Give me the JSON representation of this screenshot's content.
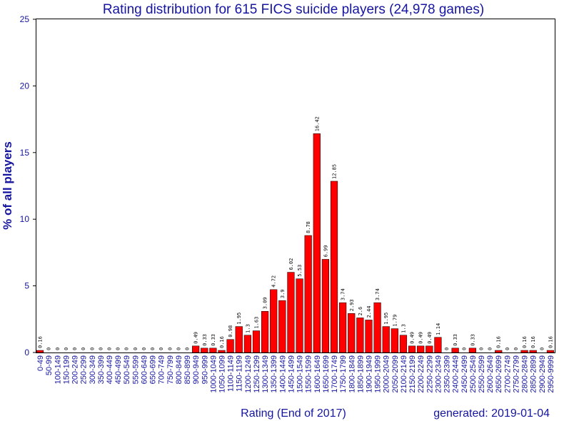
{
  "chart_data": {
    "type": "bar",
    "title": "Rating distribution for 615 FICS suicide players (24,978 games)",
    "xlabel": "Rating (End of 2017)",
    "ylabel": "% of all players",
    "footer": "generated: 2019-01-04",
    "ylim": [
      0,
      25
    ],
    "yticks": [
      "0",
      "5",
      "10",
      "15",
      "20",
      "25"
    ],
    "grid": false,
    "legend": "none",
    "bar_color": "#ff0000",
    "text_color": "#1515a0",
    "categories": [
      "0-49",
      "50-99",
      "100-149",
      "150-199",
      "200-249",
      "250-299",
      "300-349",
      "350-399",
      "400-449",
      "450-499",
      "500-549",
      "550-599",
      "600-649",
      "650-699",
      "700-749",
      "750-799",
      "800-849",
      "850-899",
      "900-949",
      "950-999",
      "1000-1049",
      "1050-1099",
      "1100-1149",
      "1150-1199",
      "1200-1249",
      "1250-1299",
      "1300-1349",
      "1350-1399",
      "1400-1449",
      "1450-1499",
      "1500-1549",
      "1550-1599",
      "1600-1649",
      "1650-1699",
      "1700-1749",
      "1750-1799",
      "1800-1849",
      "1850-1899",
      "1900-1949",
      "1950-1999",
      "2000-2049",
      "2050-2099",
      "2100-2149",
      "2150-2199",
      "2200-2249",
      "2250-2299",
      "2300-2349",
      "2350-2399",
      "2400-2449",
      "2450-2499",
      "2500-2549",
      "2550-2599",
      "2600-2649",
      "2650-2699",
      "2700-2749",
      "2750-2799",
      "2800-2849",
      "2850-2899",
      "2900-2949",
      "2950-9999"
    ],
    "values": [
      0.16,
      0,
      0,
      0,
      0,
      0,
      0,
      0,
      0,
      0,
      0,
      0,
      0,
      0,
      0,
      0,
      0,
      0,
      0.49,
      0.33,
      0.33,
      0.16,
      0.98,
      1.95,
      1.3,
      1.63,
      3.09,
      4.72,
      3.9,
      6.02,
      5.53,
      8.78,
      16.42,
      6.99,
      12.85,
      3.74,
      2.93,
      2.6,
      2.44,
      3.74,
      1.95,
      1.79,
      1.3,
      0.49,
      0.49,
      0.49,
      1.14,
      0,
      0.33,
      0,
      0.33,
      0,
      0,
      0.16,
      0,
      0,
      0.16,
      0.16,
      0,
      0.16
    ],
    "data_labels": [
      "0.16",
      "0",
      "0",
      "0",
      "0",
      "0",
      "0",
      "0",
      "0",
      "0",
      "0",
      "0",
      "0",
      "0",
      "0",
      "0",
      "0",
      "0",
      "0.49",
      "0.33",
      "0.33",
      "0.16",
      "0.98",
      "1.95",
      "1.3",
      "1.63",
      "3.09",
      "4.72",
      "3.9",
      "6.02",
      "5.53",
      "8.78",
      "16.42",
      "6.99",
      "12.85",
      "3.74",
      "2.93",
      "2.6",
      "2.44",
      "3.74",
      "1.95",
      "1.79",
      "1.3",
      "0.49",
      "0.49",
      "0.49",
      "1.14",
      "0",
      "0.33",
      "0",
      "0.33",
      "0",
      "0",
      "0.16",
      "0",
      "0",
      "0.16",
      "0.16",
      "0",
      "0.16"
    ]
  }
}
